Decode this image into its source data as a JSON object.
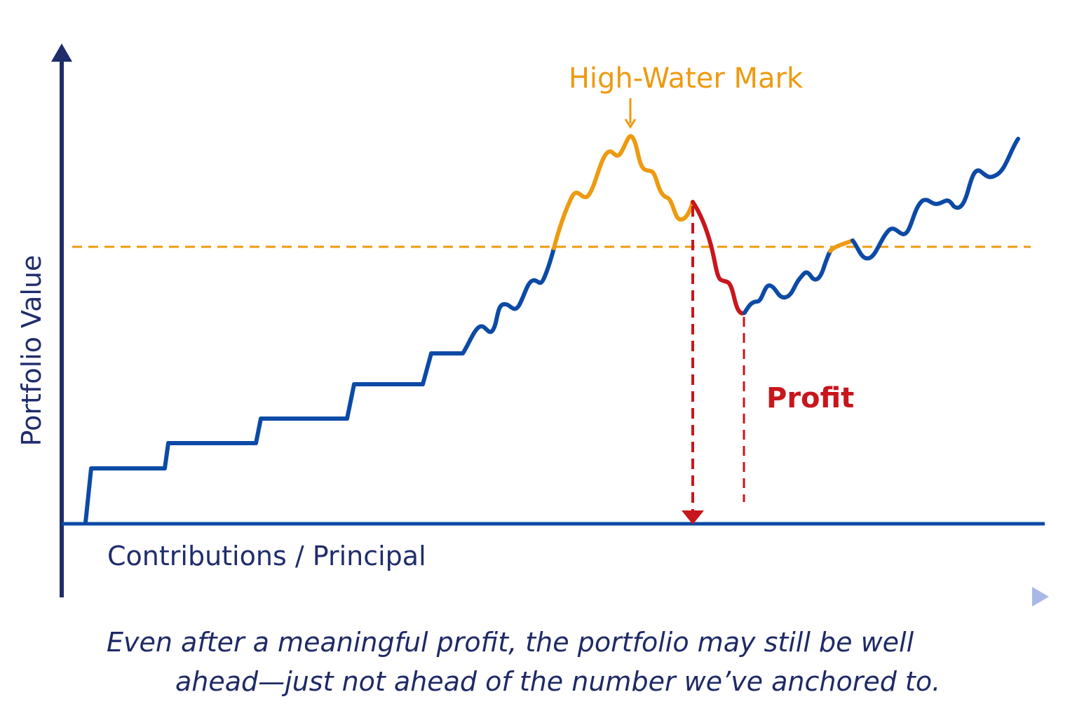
{
  "labels": {
    "y_axis": "Portfolio Value",
    "principal": "Contributions / Principal",
    "high_water_mark": "High-Water Mark",
    "profit": "Profit"
  },
  "caption": {
    "line1": "Even after a meaningful profit, the portfolio may still be well",
    "line2": "ahead—just not ahead of the number we’ve anchored to."
  },
  "colors": {
    "axis": "#1f2d6b",
    "principal": "#0c4aa6",
    "line": "#0c4aa6",
    "above_mark": "#ee9a10",
    "drawdown": "#c8161d",
    "caption": "#1e2a66"
  }
}
